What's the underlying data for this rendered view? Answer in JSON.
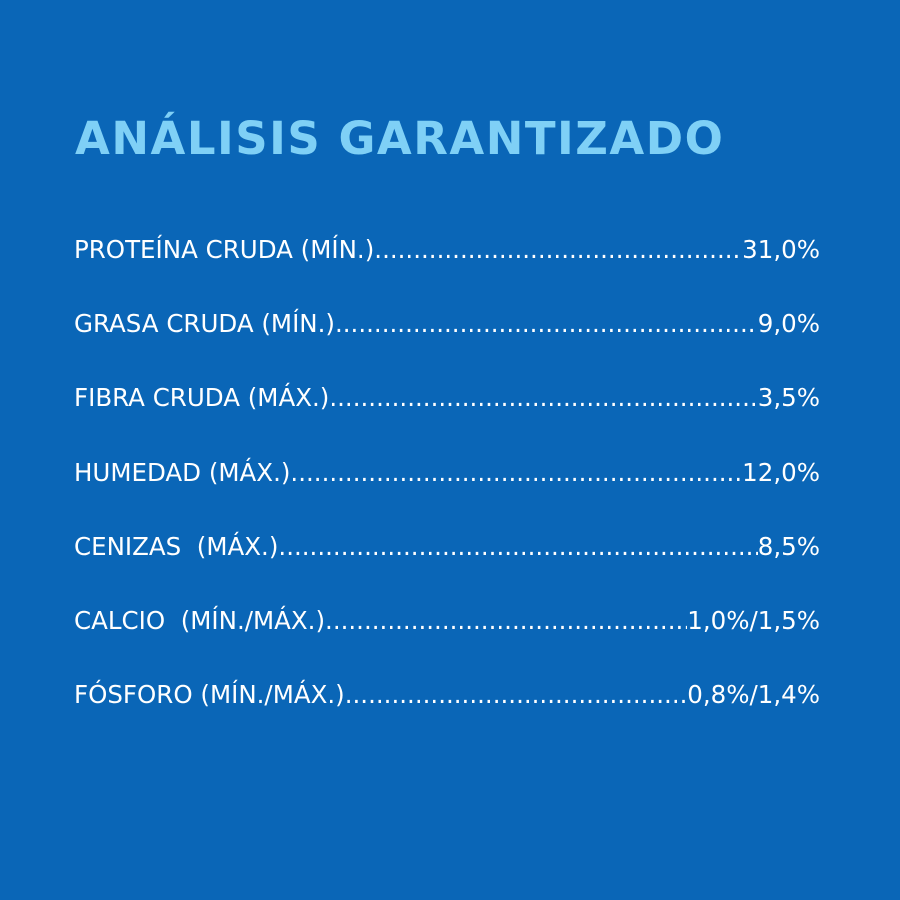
{
  "title": "ANÁLISIS GARANTIZADO",
  "rows": [
    {
      "label": "PROTEÍNA CRUDA (MÍN.)",
      "value": "31,0%"
    },
    {
      "label": "GRASA CRUDA (MÍN.)",
      "value": "9,0%"
    },
    {
      "label": "FIBRA CRUDA (MÁX.)",
      "value": "3,5%"
    },
    {
      "label": "HUMEDAD (MÁX.)",
      "value": "12,0%"
    },
    {
      "label": "CENIZAS  (MÁX.)",
      "value": "8,5%"
    },
    {
      "label": "CALCIO  (MÍN./MÁX.)",
      "value": "1,0%/1,5%"
    },
    {
      "label": "FÓSFORO (MÍN./MÁX.)",
      "value": "0,8%/1,4%"
    }
  ],
  "colors": {
    "background": "#0a66b7",
    "title": "#7fd0f6",
    "text": "#ffffff"
  }
}
